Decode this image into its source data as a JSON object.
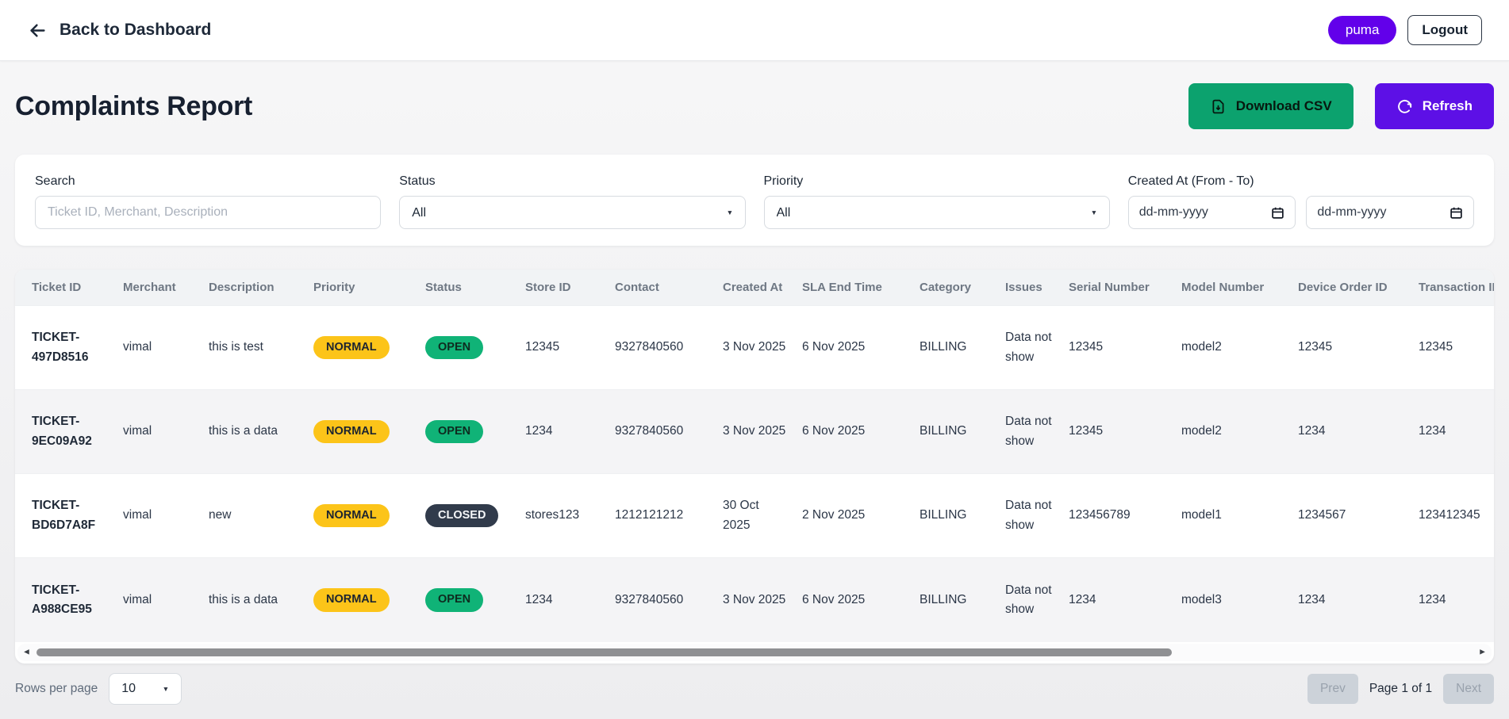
{
  "header": {
    "back_label": "Back to Dashboard",
    "user_badge": "puma",
    "logout_label": "Logout"
  },
  "page": {
    "title": "Complaints Report",
    "download_csv_label": "Download CSV",
    "refresh_label": "Refresh"
  },
  "filters": {
    "search": {
      "label": "Search",
      "placeholder": "Ticket ID, Merchant, Description",
      "value": ""
    },
    "status": {
      "label": "Status",
      "value": "All"
    },
    "priority": {
      "label": "Priority",
      "value": "All"
    },
    "created_at": {
      "label": "Created At (From - To)",
      "from_placeholder": "dd-mm-yyyy",
      "to_placeholder": "dd-mm-yyyy"
    }
  },
  "table": {
    "columns": [
      "Ticket ID",
      "Merchant",
      "Description",
      "Priority",
      "Status",
      "Store ID",
      "Contact",
      "Created At",
      "SLA End Time",
      "Category",
      "Issues",
      "Serial Number",
      "Model Number",
      "Device Order ID",
      "Transaction ID"
    ],
    "rows": [
      {
        "ticket_id": "TICKET-497D8516",
        "merchant": "vimal",
        "description": "this is test",
        "priority": "NORMAL",
        "status": "OPEN",
        "store_id": "12345",
        "contact": "9327840560",
        "created_at": "3 Nov 2025",
        "sla_end_time": "6 Nov 2025",
        "category": "BILLING",
        "issues": "Data not show",
        "serial_number": "12345",
        "model_number": "model2",
        "device_order_id": "12345",
        "transaction_id": "12345"
      },
      {
        "ticket_id": "TICKET-9EC09A92",
        "merchant": "vimal",
        "description": "this is a data",
        "priority": "NORMAL",
        "status": "OPEN",
        "store_id": "1234",
        "contact": "9327840560",
        "created_at": "3 Nov 2025",
        "sla_end_time": "6 Nov 2025",
        "category": "BILLING",
        "issues": "Data not show",
        "serial_number": "12345",
        "model_number": "model2",
        "device_order_id": "1234",
        "transaction_id": "1234"
      },
      {
        "ticket_id": "TICKET-BD6D7A8F",
        "merchant": "vimal",
        "description": "new",
        "priority": "NORMAL",
        "status": "CLOSED",
        "store_id": "stores123",
        "contact": "1212121212",
        "created_at": "30 Oct 2025",
        "sla_end_time": "2 Nov 2025",
        "category": "BILLING",
        "issues": "Data not show",
        "serial_number": "123456789",
        "model_number": "model1",
        "device_order_id": "1234567",
        "transaction_id": "123412345"
      },
      {
        "ticket_id": "TICKET-A988CE95",
        "merchant": "vimal",
        "description": "this is a data",
        "priority": "NORMAL",
        "status": "OPEN",
        "store_id": "1234",
        "contact": "9327840560",
        "created_at": "3 Nov 2025",
        "sla_end_time": "6 Nov 2025",
        "category": "BILLING",
        "issues": "Data not show",
        "serial_number": "1234",
        "model_number": "model3",
        "device_order_id": "1234",
        "transaction_id": "1234"
      }
    ]
  },
  "pagination": {
    "rows_per_page_label": "Rows per page",
    "rows_per_page_value": "10",
    "prev_label": "Prev",
    "page_info": "Page 1 of 1",
    "next_label": "Next"
  },
  "icons": {
    "back": "arrow-left-icon",
    "download": "file-download-icon",
    "refresh": "refresh-icon",
    "calendar": "calendar-icon",
    "caret": "chevron-down-icon"
  },
  "colors": {
    "accent_purple": "#5d10e6",
    "user_badge_purple": "#6200ea",
    "accent_green": "#0ca26e",
    "badge_normal_yellow": "#fcc419",
    "badge_open_green": "#10b377",
    "badge_closed_dark": "#313b4b",
    "header_text": "#6e7783",
    "row_stripe": "#f4f4f6"
  }
}
